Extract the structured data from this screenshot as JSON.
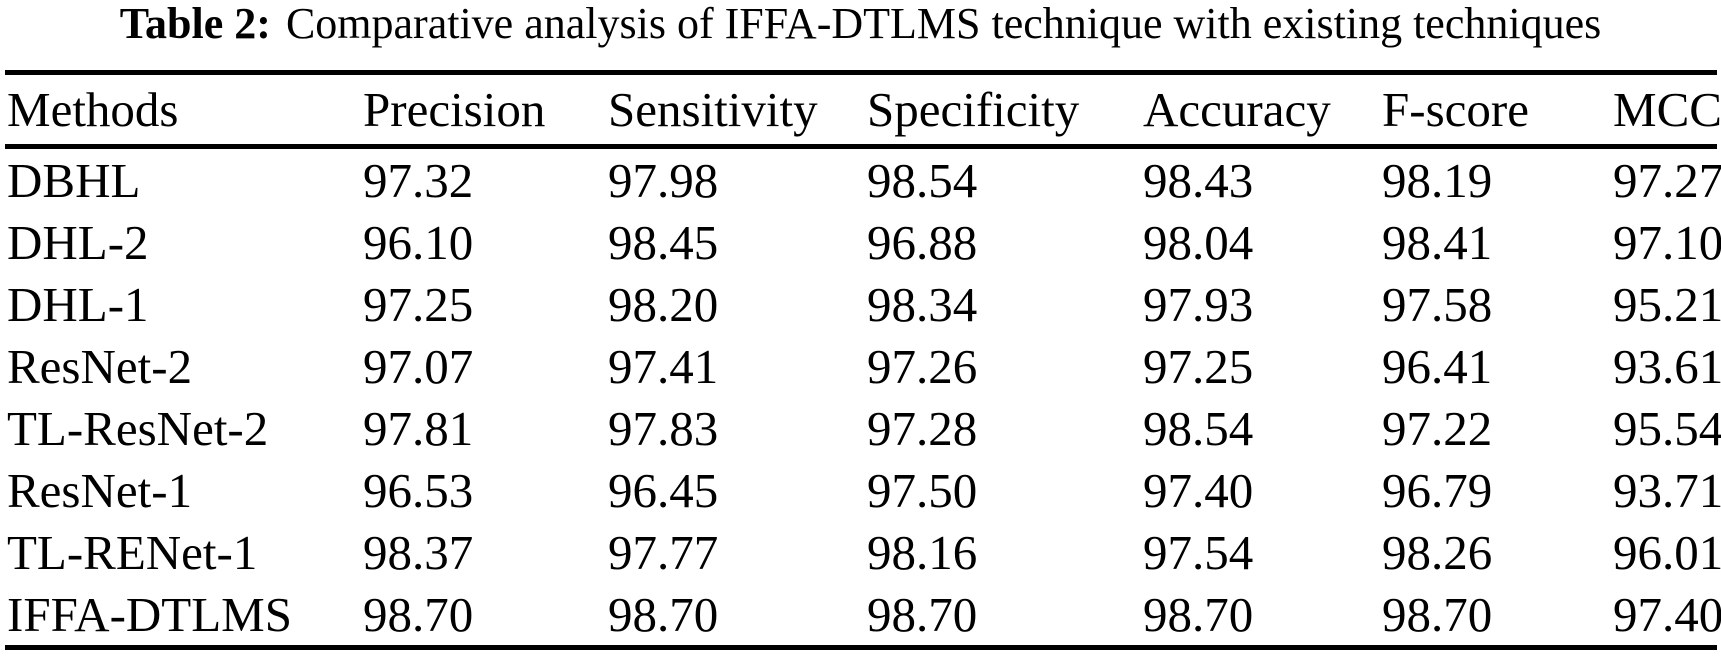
{
  "caption": {
    "label": "Table 2:",
    "text": "Comparative analysis of IFFA-DTLMS technique with existing techniques"
  },
  "table": {
    "headers": [
      "Methods",
      "Precision",
      "Sensitivity",
      "Specificity",
      "Accuracy",
      "F-score",
      "MCC"
    ],
    "rows": [
      {
        "method": "DBHL",
        "values": [
          "97.32",
          "97.98",
          "98.54",
          "98.43",
          "98.19",
          "97.27"
        ]
      },
      {
        "method": "DHL-2",
        "values": [
          "96.10",
          "98.45",
          "96.88",
          "98.04",
          "98.41",
          "97.10"
        ]
      },
      {
        "method": "DHL-1",
        "values": [
          "97.25",
          "98.20",
          "98.34",
          "97.93",
          "97.58",
          "95.21"
        ]
      },
      {
        "method": "ResNet-2",
        "values": [
          "97.07",
          "97.41",
          "97.26",
          "97.25",
          "96.41",
          "93.61"
        ]
      },
      {
        "method": "TL-ResNet-2",
        "values": [
          "97.81",
          "97.83",
          "97.28",
          "98.54",
          "97.22",
          "95.54"
        ]
      },
      {
        "method": "ResNet-1",
        "values": [
          "96.53",
          "96.45",
          "97.50",
          "97.40",
          "96.79",
          "93.71"
        ]
      },
      {
        "method": "TL-RENet-1",
        "values": [
          "98.37",
          "97.77",
          "98.16",
          "97.54",
          "98.26",
          "96.01"
        ]
      },
      {
        "method": "IFFA-DTLMS",
        "values": [
          "98.70",
          "98.70",
          "98.70",
          "98.70",
          "98.70",
          "97.40"
        ]
      }
    ]
  },
  "chart_data": {
    "type": "table",
    "title": "Table 2: Comparative analysis of IFFA-DTLMS technique with existing techniques",
    "columns": [
      "Methods",
      "Precision",
      "Sensitivity",
      "Specificity",
      "Accuracy",
      "F-score",
      "MCC"
    ],
    "rows": [
      [
        "DBHL",
        97.32,
        97.98,
        98.54,
        98.43,
        98.19,
        97.27
      ],
      [
        "DHL-2",
        96.1,
        98.45,
        96.88,
        98.04,
        98.41,
        97.1
      ],
      [
        "DHL-1",
        97.25,
        98.2,
        98.34,
        97.93,
        97.58,
        95.21
      ],
      [
        "ResNet-2",
        97.07,
        97.41,
        97.26,
        97.25,
        96.41,
        93.61
      ],
      [
        "TL-ResNet-2",
        97.81,
        97.83,
        97.28,
        98.54,
        97.22,
        95.54
      ],
      [
        "ResNet-1",
        96.53,
        96.45,
        97.5,
        97.4,
        96.79,
        93.71
      ],
      [
        "TL-RENet-1",
        98.37,
        97.77,
        98.16,
        97.54,
        98.26,
        96.01
      ],
      [
        "IFFA-DTLMS",
        98.7,
        98.7,
        98.7,
        98.7,
        98.7,
        97.4
      ]
    ]
  },
  "colors": {
    "text": "#000000",
    "background": "#ffffff",
    "rule": "#000000"
  }
}
